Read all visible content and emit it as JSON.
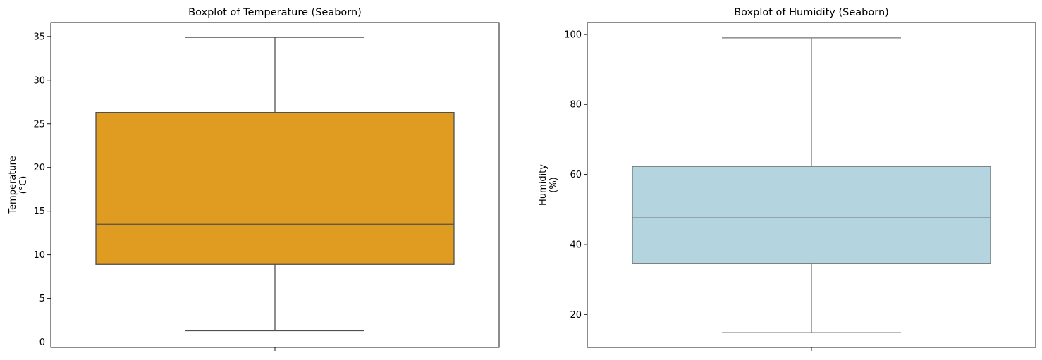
{
  "chart_data": [
    {
      "type": "boxplot",
      "title": "Boxplot of Temperature (Seaborn)",
      "xlabel": "",
      "ylabel_lines": [
        "Temperature",
        "(°C)"
      ],
      "ylim": [
        -0.6,
        36.6
      ],
      "yticks": [
        0,
        5,
        10,
        15,
        20,
        25,
        30,
        35
      ],
      "box": {
        "whisker_low": 1.3,
        "q1": 8.9,
        "median": 13.5,
        "q3": 26.3,
        "whisker_high": 34.9
      },
      "fill_color": "#e09c20",
      "line_color": "#505050",
      "grid": false
    },
    {
      "type": "boxplot",
      "title": "Boxplot of Humidity (Seaborn)",
      "xlabel": "",
      "ylabel_lines": [
        "Humidity",
        "(%)"
      ],
      "ylim": [
        10.6,
        103.4
      ],
      "yticks": [
        20,
        40,
        60,
        80,
        100
      ],
      "box": {
        "whisker_low": 14.8,
        "q1": 34.5,
        "median": 47.6,
        "q3": 62.3,
        "whisker_high": 99.0
      },
      "fill_color": "#b4d5e0",
      "line_color": "#757575",
      "grid": false
    }
  ]
}
